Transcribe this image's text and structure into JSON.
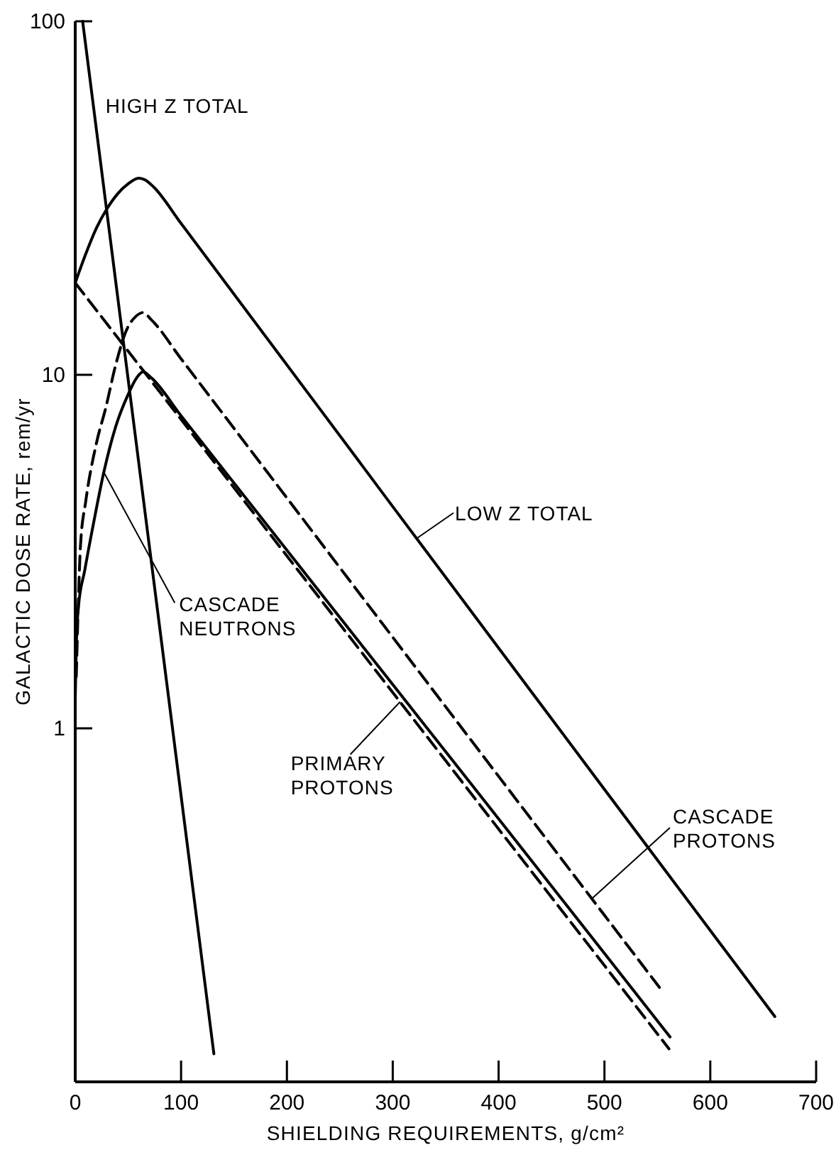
{
  "chart_data": {
    "type": "line",
    "xlabel": "SHIELDING REQUIREMENTS, g/cm²",
    "ylabel": "GALACTIC DOSE RATE, rem/yr",
    "xlim": [
      0,
      700
    ],
    "xticks": [
      0,
      100,
      200,
      300,
      400,
      500,
      600,
      700
    ],
    "ylim": [
      0.1,
      100
    ],
    "yticks": [
      1,
      10,
      100
    ],
    "log": true,
    "series": [
      {
        "name": "HIGH Z TOTAL",
        "color": "#000000",
        "line_style": "solid",
        "x": [
          7,
          131
        ],
        "values": [
          100,
          0.12
        ]
      },
      {
        "name": "LOW Z TOTAL",
        "color": "#000000",
        "line_style": "solid",
        "x": [
          0,
          10,
          20,
          30,
          40,
          50,
          60,
          66,
          74,
          100,
          300,
          500,
          661
        ],
        "values": [
          18.2,
          22,
          26,
          29.5,
          32.5,
          34.7,
          36,
          35.6,
          34,
          26.8,
          4.24,
          0.672,
          0.153
        ]
      },
      {
        "name": "CASCADE PROTONS",
        "color": "#000000",
        "line_style": "dashed",
        "x": [
          1,
          3,
          5,
          10,
          20,
          29,
          38,
          49,
          57,
          64,
          72,
          100,
          300,
          500,
          552
        ],
        "values": [
          1.4,
          2.3,
          3.3,
          4.4,
          6.4,
          8.1,
          10.6,
          13.5,
          14.6,
          15,
          14.3,
          11.1,
          1.81,
          0.296,
          0.185
        ]
      },
      {
        "name": "PRIMARY PROTONS",
        "color": "#000000",
        "line_style": "dashed",
        "x": [
          0,
          561
        ],
        "values": [
          18.2,
          0.124
        ]
      },
      {
        "name": "CASCADE NEUTRONS",
        "color": "#000000",
        "line_style": "solid",
        "x": [
          0,
          1,
          3,
          9,
          18,
          27,
          38,
          50,
          58,
          64,
          72,
          100,
          300,
          500,
          562
        ],
        "values": [
          1.2,
          1.7,
          2.2,
          2.8,
          3.9,
          5.3,
          7.1,
          8.8,
          9.8,
          10.2,
          9.8,
          7.66,
          1.33,
          0.231,
          0.134
        ]
      }
    ]
  }
}
